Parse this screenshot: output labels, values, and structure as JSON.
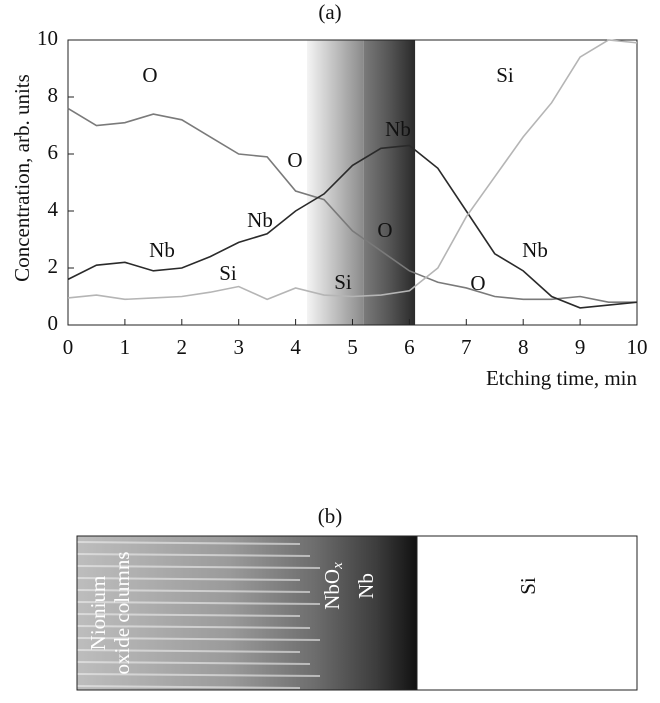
{
  "chart_data": {
    "type": "line",
    "title": "(a)",
    "xlabel": "Etching time, min",
    "ylabel": "Concentration, arb. units",
    "x": [
      0,
      0.5,
      1,
      1.5,
      2,
      2.5,
      3,
      3.5,
      4,
      4.5,
      5,
      5.5,
      6,
      6.5,
      7,
      7.5,
      8,
      8.5,
      9,
      9.5,
      10
    ],
    "series": [
      {
        "name": "O",
        "color": "#7a7a7a",
        "values": [
          7.6,
          7.0,
          7.1,
          7.4,
          7.2,
          6.6,
          6.0,
          5.9,
          4.7,
          4.4,
          3.3,
          2.6,
          1.9,
          1.5,
          1.3,
          1.0,
          0.9,
          0.9,
          1.0,
          0.8,
          0.8
        ]
      },
      {
        "name": "Nb",
        "color": "#2a2a2a",
        "values": [
          1.6,
          2.1,
          2.2,
          1.9,
          2.0,
          2.4,
          2.9,
          3.2,
          4.0,
          4.6,
          5.6,
          6.2,
          6.3,
          5.5,
          4.0,
          2.5,
          1.9,
          1.0,
          0.6,
          0.7,
          0.8
        ]
      },
      {
        "name": "Si",
        "color": "#b5b5b5",
        "values": [
          0.95,
          1.05,
          0.9,
          0.95,
          1.0,
          1.15,
          1.35,
          0.9,
          1.3,
          1.05,
          1.0,
          1.05,
          1.2,
          2.0,
          3.8,
          5.2,
          6.6,
          7.8,
          9.4,
          10.0,
          9.9
        ]
      }
    ],
    "annotations": [
      "O",
      "O",
      "O",
      "O",
      "Nb",
      "Nb",
      "Nb",
      "Nb",
      "Si",
      "Si",
      "Si"
    ],
    "regions": [
      {
        "from": 4.2,
        "to": 5.2
      },
      {
        "from": 5.2,
        "to": 6.1
      }
    ],
    "xlim": [
      0,
      10
    ],
    "ylim": [
      0,
      10
    ],
    "xticks": [
      0,
      1,
      2,
      3,
      4,
      5,
      6,
      7,
      8,
      9,
      10
    ],
    "yticks": [
      0,
      2,
      4,
      6,
      8,
      10
    ]
  },
  "panel_b": {
    "label": "(b)",
    "columns_label": [
      "Nionium",
      "oxide columns"
    ],
    "oxide_label": {
      "base": "NbO",
      "sub": "x"
    },
    "metal_label": "Nb",
    "substrate_label": "Si"
  }
}
